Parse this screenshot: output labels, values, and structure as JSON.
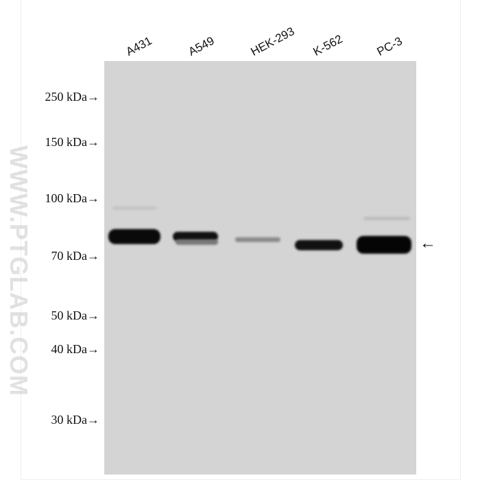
{
  "lanes": [
    "A431",
    "A549",
    "HEK-293",
    "K-562",
    "PC-3"
  ],
  "markers": [
    "250 kDa→",
    "150 kDa→",
    "100 kDa→",
    "70 kDa→",
    "50 kDa→",
    "40 kDa→",
    "30 kDa→"
  ],
  "watermark": "WWW.PTGLAB.COM",
  "target_arrow": "←",
  "colors": {
    "membrane": "#d4d4d4",
    "band": "#0a0a0a"
  }
}
